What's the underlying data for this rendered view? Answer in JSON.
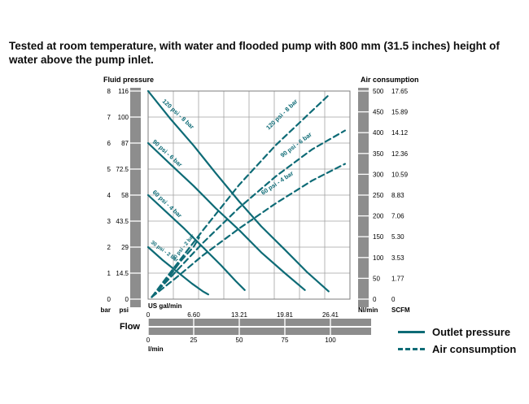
{
  "title": "Tested at room temperature, with water and flooded pump with 800 mm  (31.5 inches) height of water above the pump inlet.",
  "colors": {
    "curve": "#0e6b76",
    "axis_bar": "#8d8d8d",
    "grid": "#a3a3a3",
    "border": "#7e7e7e",
    "text": "#000000"
  },
  "legend": {
    "outlet": "Outlet pressure",
    "air": "Air consumption"
  },
  "chart_data": {
    "type": "line",
    "grid": "on",
    "left_axis": {
      "title": "Fluid pressure",
      "unit_labels": [
        "bar",
        "psi"
      ],
      "bar_ticks": [
        8,
        7,
        6,
        5,
        4,
        3,
        2,
        1,
        0
      ],
      "psi_ticks": [
        "116",
        "100",
        "87",
        "72.5",
        "58",
        "43.5",
        "29",
        "14.5",
        "0"
      ],
      "range_bar": [
        0,
        8
      ]
    },
    "right_axis": {
      "title": "Air consumption",
      "unit_labels": [
        "Nl/min",
        "SCFM"
      ],
      "nlmin_ticks": [
        500,
        450,
        400,
        350,
        300,
        250,
        200,
        150,
        100,
        50,
        0
      ],
      "scfm_ticks": [
        "17.65",
        "15.89",
        "14.12",
        "12.36",
        "10.59",
        "8.83",
        "7.06",
        "5.30",
        "3.53",
        "1.77",
        "0"
      ],
      "range_nlmin": [
        0,
        500
      ]
    },
    "x_axis": {
      "title": "Flow",
      "gal_label": "US gal/min",
      "lmin_label": "l/min",
      "gal_ticks": [
        "0",
        "6.60",
        "13.21",
        "19.81",
        "26.41"
      ],
      "gal_tick_lmin": [
        0,
        25,
        50,
        75,
        100
      ],
      "lmin_ticks": [
        0,
        25,
        50,
        75,
        100
      ],
      "range_lmin": [
        0,
        110
      ]
    },
    "pressure_series": [
      {
        "name": "120 psi - 8 bar",
        "units": "l/min vs bar",
        "points": [
          [
            0,
            8
          ],
          [
            12,
            6.95
          ],
          [
            25,
            5.9
          ],
          [
            37,
            4.85
          ],
          [
            50,
            3.75
          ],
          [
            62,
            2.8
          ],
          [
            75,
            1.9
          ],
          [
            87,
            1.05
          ],
          [
            99,
            0.3
          ]
        ]
      },
      {
        "name": "90 psi - 6 bar",
        "units": "l/min vs bar",
        "points": [
          [
            0,
            6
          ],
          [
            12,
            5.2
          ],
          [
            25,
            4.35
          ],
          [
            37,
            3.5
          ],
          [
            50,
            2.65
          ],
          [
            62,
            1.8
          ],
          [
            75,
            1.0
          ],
          [
            86,
            0.35
          ]
        ]
      },
      {
        "name": "60 psi - 4 bar",
        "units": "l/min vs bar",
        "points": [
          [
            0,
            4
          ],
          [
            10,
            3.35
          ],
          [
            20,
            2.7
          ],
          [
            30,
            2.0
          ],
          [
            40,
            1.3
          ],
          [
            48,
            0.7
          ],
          [
            53,
            0.35
          ]
        ]
      },
      {
        "name": "30 psi - 2 bar",
        "units": "l/min vs bar",
        "points": [
          [
            0,
            2
          ],
          [
            8,
            1.5
          ],
          [
            16,
            1.05
          ],
          [
            24,
            0.6
          ],
          [
            30,
            0.3
          ],
          [
            33,
            0.18
          ]
        ]
      }
    ],
    "air_series": [
      {
        "name": "120 psi - 8 bar",
        "units": "l/min vs Nl/min",
        "points": [
          [
            2,
            5
          ],
          [
            15,
            80
          ],
          [
            30,
            165
          ],
          [
            50,
            275
          ],
          [
            70,
            370
          ],
          [
            85,
            432
          ],
          [
            99,
            490
          ]
        ]
      },
      {
        "name": "90 psi - 6 bar",
        "units": "l/min vs Nl/min",
        "points": [
          [
            2,
            5
          ],
          [
            15,
            65
          ],
          [
            30,
            135
          ],
          [
            50,
            220
          ],
          [
            70,
            295
          ],
          [
            90,
            360
          ],
          [
            108,
            405
          ]
        ]
      },
      {
        "name": "60 psi - 4 bar",
        "units": "l/min vs Nl/min",
        "points": [
          [
            2,
            5
          ],
          [
            15,
            50
          ],
          [
            30,
            105
          ],
          [
            50,
            170
          ],
          [
            70,
            230
          ],
          [
            90,
            285
          ],
          [
            108,
            325
          ]
        ]
      },
      {
        "name": "30 psi - 2 bar",
        "units": "l/min vs Nl/min",
        "points": [
          [
            2,
            5
          ],
          [
            10,
            45
          ],
          [
            18,
            92
          ],
          [
            25,
            126
          ],
          [
            28,
            148
          ]
        ]
      }
    ]
  }
}
